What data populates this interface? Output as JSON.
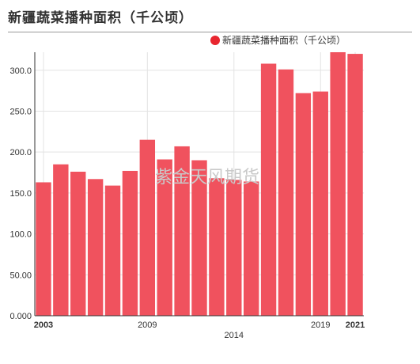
{
  "header": {
    "title": "新疆蔬菜播种面积（千公顷）"
  },
  "watermark": "紫金天风期货",
  "chart_data": {
    "type": "bar",
    "categories": [
      "2003",
      "2004",
      "2005",
      "2006",
      "2007",
      "2008",
      "2009",
      "2010",
      "2011",
      "2012",
      "2013",
      "2014",
      "2015",
      "2016",
      "2017",
      "2018",
      "2019",
      "2020",
      "2021"
    ],
    "series": [
      {
        "name": "新疆蔬菜播种面积（千公顷）",
        "color": "#f0525e",
        "values": [
          163,
          185,
          176,
          167,
          159,
          177,
          215,
          191,
          207,
          190,
          168,
          166,
          164,
          308,
          301,
          272,
          274,
          322,
          320
        ]
      }
    ],
    "ylim": [
      0,
      322
    ],
    "yticks": [
      "0.000",
      "50.00",
      "100.0",
      "150.0",
      "200.0",
      "250.0",
      "300.0"
    ],
    "ytick_values": [
      0,
      50,
      100,
      150,
      200,
      250,
      300
    ],
    "xticks_shown": [
      {
        "label": "2003",
        "category": "2003",
        "bold": true,
        "row": 1
      },
      {
        "label": "2009",
        "category": "2009",
        "bold": false,
        "row": 1
      },
      {
        "label": "2014",
        "category": "2014",
        "bold": false,
        "row": 2
      },
      {
        "label": "2019",
        "category": "2019",
        "bold": false,
        "row": 1
      },
      {
        "label": "2021",
        "category": "2021",
        "bold": true,
        "row": 1
      }
    ],
    "grid": true,
    "legend": "top"
  }
}
